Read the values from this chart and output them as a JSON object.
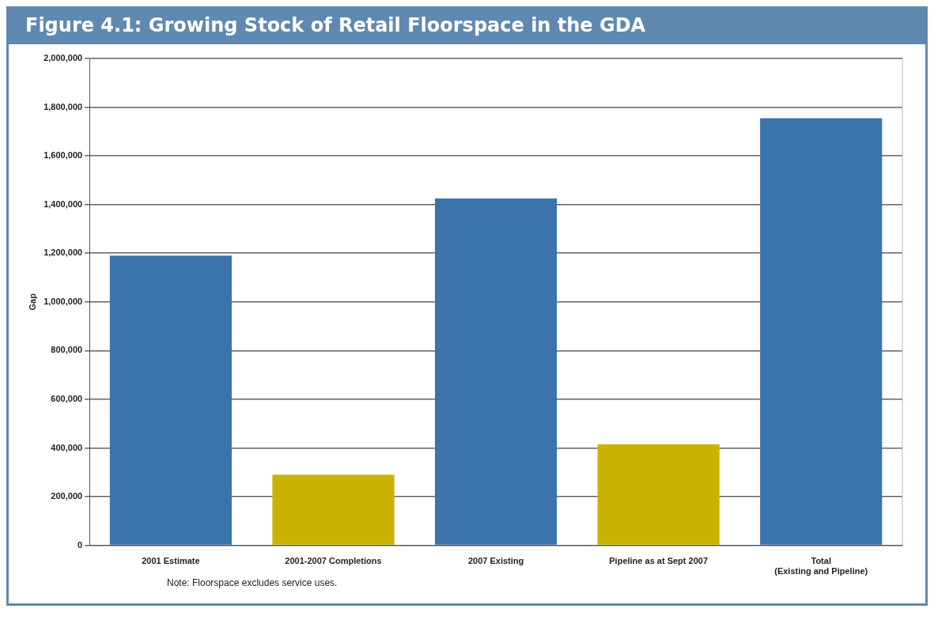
{
  "chart_data": {
    "type": "bar",
    "title": "Figure 4.1: Growing Stock of Retail Floorspace in the GDA",
    "ylabel": "Gap",
    "categories": [
      "2001 Estimate",
      "2001-2007 Completions",
      "2007 Existing",
      "Pipeline as at Sept 2007",
      "Total\n(Existing and Pipeline)"
    ],
    "values": [
      1190000,
      290000,
      1425000,
      415000,
      1755000
    ],
    "colors": [
      "#3a74ab",
      "#c9b300",
      "#3a74ab",
      "#c9b300",
      "#3a74ab"
    ],
    "ylim": [
      0,
      2000000
    ],
    "yticks": [
      0,
      {
        "value": 200000,
        "label": "200,000"
      },
      {
        "value": 400000,
        "label": "400,000"
      },
      {
        "value": 600000,
        "label": "600,000"
      },
      {
        "value": 800000,
        "label": "800,000"
      },
      {
        "value": 1000000,
        "label": "1,000,000"
      },
      {
        "value": 1200000,
        "label": "1,200,000"
      },
      {
        "value": 1400000,
        "label": "1,400,000"
      },
      {
        "value": 1600000,
        "label": "1,600,000"
      },
      {
        "value": 1800000,
        "label": "1,800,000"
      },
      {
        "value": 2000000,
        "label": "2,000,000"
      }
    ],
    "grid": "y",
    "legend": false,
    "annotations": [
      "Note: Floorspace excludes service uses."
    ]
  }
}
